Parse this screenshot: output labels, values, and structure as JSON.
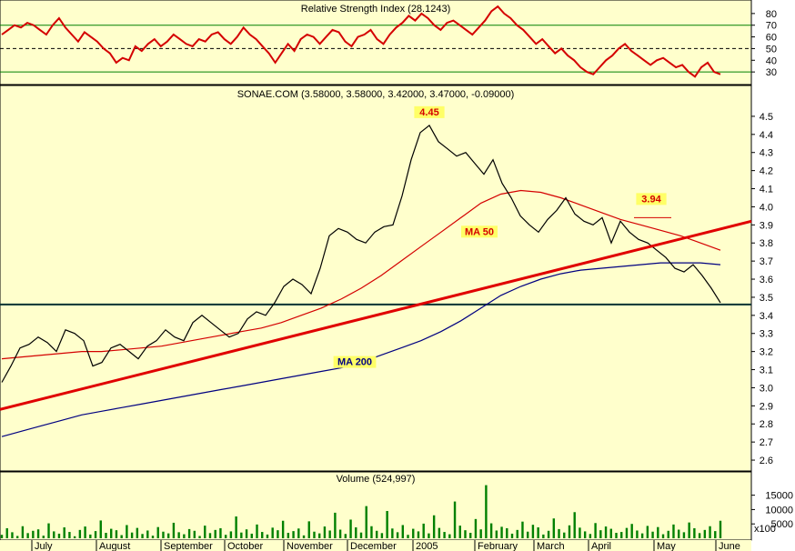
{
  "chart_data": [
    {
      "type": "line",
      "title": "Relative Strength Index (28.1243)",
      "ylim": [
        20,
        90
      ],
      "y_ticks": [
        "80",
        "70",
        "60",
        "50",
        "40",
        "30"
      ],
      "reference_lines": [
        70,
        50,
        30
      ],
      "series": [
        {
          "values": [
            62,
            66,
            70,
            68,
            72,
            70,
            66,
            62,
            70,
            76,
            68,
            62,
            56,
            64,
            60,
            56,
            50,
            46,
            38,
            42,
            40,
            52,
            48,
            54,
            58,
            52,
            56,
            62,
            58,
            54,
            52,
            58,
            56,
            62,
            64,
            58,
            54,
            60,
            68,
            62,
            58,
            52,
            46,
            38,
            46,
            54,
            48,
            58,
            62,
            60,
            54,
            60,
            66,
            64,
            56,
            52,
            60,
            62,
            66,
            58,
            54,
            62,
            68,
            72,
            78,
            74,
            80,
            76,
            70,
            66,
            72,
            74,
            70,
            66,
            62,
            68,
            74,
            82,
            86,
            80,
            76,
            70,
            66,
            60,
            54,
            58,
            52,
            46,
            50,
            44,
            40,
            34,
            30,
            28,
            34,
            40,
            44,
            50,
            54,
            48,
            44,
            40,
            36,
            40,
            42,
            38,
            34,
            36,
            30,
            26,
            34,
            38,
            30,
            28
          ]
        }
      ],
      "colors": {
        "line": "#d40000",
        "reference": "#008000",
        "midline": "#000000",
        "background": "#ffffcc"
      }
    },
    {
      "type": "line",
      "subtitle": "SONAE.COM (3.58000, 3.58000, 3.42000, 3.47000, -0.09000)",
      "ylim": [
        2.55,
        4.58
      ],
      "y_ticks": [
        "4.5",
        "4.4",
        "4.3",
        "4.2",
        "4.1",
        "4.0",
        "3.9",
        "3.8",
        "3.7",
        "3.6",
        "3.5",
        "3.4",
        "3.3",
        "3.2",
        "3.1",
        "3.0",
        "2.9",
        "2.8",
        "2.7",
        "2.6"
      ],
      "x_ticks": [
        "July",
        "August",
        "September",
        "October",
        "November",
        "December",
        "2005",
        "February",
        "March",
        "April",
        "May",
        "June"
      ],
      "series": [
        {
          "name": "MA 50",
          "color": "#d40000",
          "values": [
            3.16,
            3.17,
            3.18,
            3.19,
            3.2,
            3.2,
            3.21,
            3.22,
            3.23,
            3.25,
            3.27,
            3.29,
            3.31,
            3.33,
            3.36,
            3.4,
            3.44,
            3.49,
            3.55,
            3.62,
            3.7,
            3.78,
            3.86,
            3.94,
            4.02,
            4.07,
            4.09,
            4.08,
            4.05,
            4.01,
            3.97,
            3.93,
            3.9,
            3.87,
            3.84,
            3.8,
            3.76
          ]
        },
        {
          "name": "MA 200",
          "color": "#000080",
          "values": [
            2.73,
            2.76,
            2.79,
            2.82,
            2.85,
            2.87,
            2.89,
            2.91,
            2.93,
            2.95,
            2.97,
            2.99,
            3.01,
            3.03,
            3.05,
            3.07,
            3.09,
            3.11,
            3.14,
            3.18,
            3.22,
            3.26,
            3.31,
            3.37,
            3.44,
            3.51,
            3.56,
            3.6,
            3.63,
            3.65,
            3.66,
            3.67,
            3.68,
            3.69,
            3.69,
            3.69,
            3.68
          ]
        },
        {
          "name": "Price",
          "color": "#000000",
          "values": [
            3.03,
            3.12,
            3.22,
            3.24,
            3.28,
            3.25,
            3.2,
            3.32,
            3.3,
            3.26,
            3.12,
            3.14,
            3.22,
            3.24,
            3.2,
            3.16,
            3.23,
            3.26,
            3.32,
            3.28,
            3.26,
            3.36,
            3.4,
            3.36,
            3.32,
            3.28,
            3.3,
            3.38,
            3.42,
            3.4,
            3.47,
            3.56,
            3.6,
            3.57,
            3.52,
            3.66,
            3.84,
            3.88,
            3.86,
            3.82,
            3.8,
            3.86,
            3.89,
            3.9,
            4.06,
            4.26,
            4.41,
            4.45,
            4.36,
            4.32,
            4.28,
            4.3,
            4.24,
            4.18,
            4.26,
            4.13,
            4.05,
            3.95,
            3.9,
            3.86,
            3.93,
            3.98,
            4.05,
            3.96,
            3.92,
            3.9,
            3.94,
            3.8,
            3.92,
            3.86,
            3.82,
            3.8,
            3.76,
            3.72,
            3.66,
            3.64,
            3.68,
            3.62,
            3.55,
            3.47
          ]
        }
      ],
      "trendline": {
        "from": 2.88,
        "to": 3.92,
        "color": "#e00000"
      },
      "horizontal_line": {
        "value": 3.46,
        "color": "#003333"
      },
      "annotations": [
        {
          "text": "4.45",
          "value": 4.45
        },
        {
          "text": "3.94",
          "value": 3.94
        },
        {
          "text": "MA 50",
          "series": "MA 50"
        },
        {
          "text": "MA 200",
          "series": "MA 200"
        }
      ]
    },
    {
      "type": "bar",
      "title": "Volume (524,997)",
      "ylim": [
        0,
        19000
      ],
      "y_ticks": [
        "15000",
        "10000",
        "5000"
      ],
      "y_unit": "x100",
      "color": "#008000",
      "values": [
        1200,
        3500,
        2100,
        800,
        4200,
        1800,
        2600,
        3100,
        900,
        5200,
        2400,
        1600,
        3800,
        2200,
        700,
        2900,
        4100,
        1300,
        2500,
        6200,
        1900,
        3300,
        2800,
        1100,
        4600,
        2000,
        3600,
        1500,
        2700,
        900,
        3900,
        2300,
        1700,
        5400,
        2100,
        1400,
        3200,
        2600,
        800,
        4400,
        1800,
        2900,
        3500,
        1200,
        2400,
        7600,
        2000,
        3100,
        1600,
        4800,
        2200,
        1300,
        3700,
        2800,
        6100,
        1900,
        2500,
        3400,
        1000,
        5900,
        2300,
        1700,
        4100,
        2700,
        8900,
        3000,
        1500,
        6500,
        3800,
        2000,
        11200,
        4200,
        2600,
        1800,
        9500,
        3400,
        2100,
        4600,
        1200,
        3300,
        2400,
        5100,
        1700,
        8000,
        3600,
        2200,
        1400,
        12800,
        4400,
        2800,
        1900,
        6700,
        3100,
        18500,
        5200,
        2700,
        4000,
        3500,
        1600,
        2900,
        5800,
        2300,
        4700,
        3800,
        1300,
        2600,
        6900,
        3200,
        2000,
        4500,
        9100,
        3700,
        2400,
        1500,
        5300,
        2800,
        4100,
        3300,
        1900,
        2200,
        3600,
        5000,
        2700,
        1700,
        4300,
        2300,
        3900,
        1400,
        2600,
        4800,
        3000,
        2100,
        5500,
        3500,
        1800,
        2900,
        4200,
        2500,
        6100
      ]
    }
  ]
}
